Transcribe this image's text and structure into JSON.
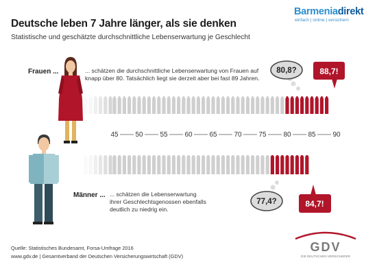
{
  "title": "Deutsche leben 7 Jahre länger, als sie denken",
  "subtitle": "Statistische und geschätzte durchschnittliche Lebenserwartung je Geschlecht",
  "brand": {
    "name_part1": "Barmenia",
    "name_part2": "direkt",
    "tagline": "einfach | online | versichern"
  },
  "women": {
    "label": "Frauen ...",
    "text_line1": "... schätzen die durchschnittliche Lebenserwartung von Frauen auf",
    "text_line2": "knapp über 80. Tatsächlich liegt sie derzeit aber bei fast 89 Jahren.",
    "estimate_label": "80,8?",
    "actual_label": "88,7!"
  },
  "men": {
    "label": "Männer ...",
    "text_line1": "... schätzen die Lebenserwartung",
    "text_line2": "ihrer Geschlechtsgenossen ebenfalls",
    "text_line3": "deutlich zu niedrig ein.",
    "estimate_label": "77,4?",
    "actual_label": "84,7!"
  },
  "footer": {
    "source": "Quelle: Statistisches Bundesamt, Forsa-Umfrage 2016",
    "site": "www.gdv.de | Gesamtverband der Deutschen Versicherungswirtschaft (GDV)"
  },
  "gdv_logo": {
    "name": "GDV",
    "tagline": "DIE DEUTSCHEN VERSICHERER"
  },
  "colors": {
    "accent": "#b0152a",
    "grey": "#cfcfcf",
    "brand_blue": "#2a8fd0"
  },
  "chart_data": {
    "type": "bar",
    "x_ticks": [
      45,
      50,
      55,
      60,
      65,
      70,
      75,
      80,
      85,
      90
    ],
    "xlim": [
      45,
      90
    ],
    "series": [
      {
        "name": "Frauen ...",
        "estimated": 80.8,
        "actual": 88.7
      },
      {
        "name": "Männer ...",
        "estimated": 77.4,
        "actual": 84.7
      }
    ]
  }
}
